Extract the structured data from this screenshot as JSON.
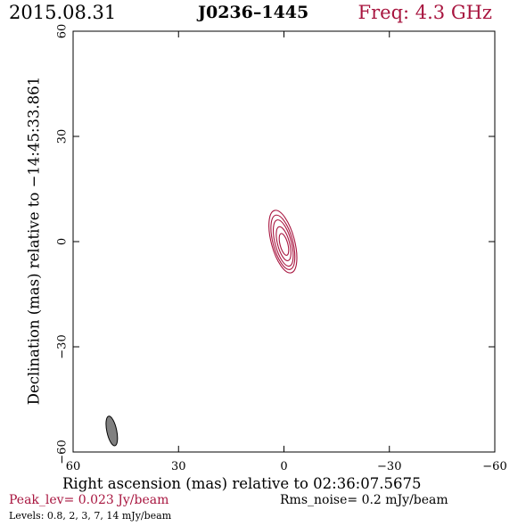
{
  "header": {
    "date": "2015.08.31",
    "source": "J0236–1445",
    "freq": "Freq: 4.3 GHz"
  },
  "colors": {
    "contour": "#a8153f",
    "axis": "#000000",
    "beam_fill": "#808080"
  },
  "chart_data": {
    "type": "contour",
    "title": "J0236–1445",
    "xlabel": "Right ascension (mas) relative to 02:36:07.5675",
    "ylabel": "Declination (mas) relative to −14:45:33.861",
    "xlim": [
      60,
      -60
    ],
    "ylim": [
      -60,
      60
    ],
    "x_ticks": [
      60,
      30,
      0,
      -30,
      -60
    ],
    "x_tick_labels": [
      "60",
      "30",
      "0",
      "−30",
      "−60"
    ],
    "y_ticks": [
      60,
      30,
      0,
      -30,
      -60
    ],
    "y_tick_labels": [
      "60",
      "30",
      "0",
      "−30",
      "−60"
    ],
    "grid": false,
    "contour_levels_mJy": [
      0.8,
      2,
      3,
      7,
      14
    ],
    "contours": [
      {
        "level": 0.8,
        "cx": 0.3,
        "cy": 0.0,
        "a": 9.2,
        "b": 3.3,
        "pa_deg": 15
      },
      {
        "level": 2,
        "cx": 0.3,
        "cy": -0.2,
        "a": 8.0,
        "b": 2.8,
        "pa_deg": 15
      },
      {
        "level": 3,
        "cx": 0.2,
        "cy": -0.4,
        "a": 6.8,
        "b": 2.3,
        "pa_deg": 15
      },
      {
        "level": 7,
        "cx": 0.1,
        "cy": -0.6,
        "a": 5.0,
        "b": 1.7,
        "pa_deg": 15
      },
      {
        "level": 14,
        "cx": 0.0,
        "cy": -0.8,
        "a": 3.2,
        "b": 1.1,
        "pa_deg": 15
      }
    ],
    "beam": {
      "cx": 49.0,
      "cy": -54.0,
      "a": 4.3,
      "b": 1.4,
      "pa_deg": 12
    },
    "peak_lev_Jy_per_beam": 0.023,
    "rms_noise_mJy_per_beam": 0.2
  },
  "footer": {
    "peak": "Peak_lev=  0.023 Jy/beam",
    "rms": "Rms_noise=  0.2 mJy/beam",
    "levels": "Levels: 0.8,   2,   3,   7,  14 mJy/beam"
  }
}
